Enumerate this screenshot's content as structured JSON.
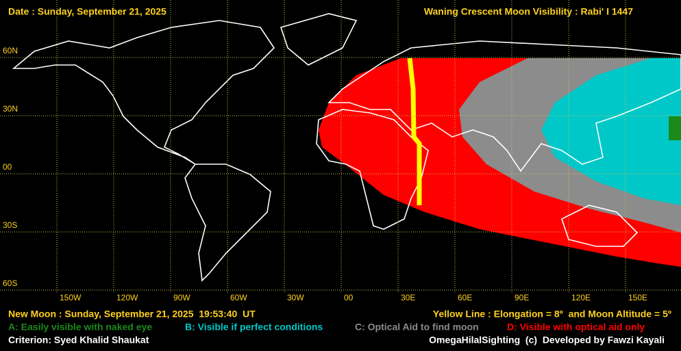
{
  "header": {
    "date": "Date : Sunday, September 21, 2025",
    "title": "Waning Crescent Moon Visibility : Rabi' I 1447"
  },
  "map": {
    "lat_labels": [
      "60N",
      "30N",
      "00",
      "30S",
      "60S"
    ],
    "lon_labels": [
      "150W",
      "120W",
      "90W",
      "60W",
      "30W",
      "00",
      "30E",
      "60E",
      "90E",
      "120E",
      "150E"
    ]
  },
  "footer": {
    "new_moon": "New Moon : Sunday, September 21, 2025  19:53:40  UT",
    "yellow_line": "Yellow Line : Elongation = 8º  and Moon Altitude = 5º",
    "legend": [
      {
        "text": "A: Easily visible with naked eye",
        "color": "#1a8a1a"
      },
      {
        "text": "B: Visible if perfect conditions",
        "color": "#00c8c8"
      },
      {
        "text": "C: Optical Aid to find moon",
        "color": "#8c8c8c"
      },
      {
        "text": "D: Visible with optical aid only",
        "color": "#ff0000"
      }
    ],
    "criterion": "Criterion: Syed Khalid Shaukat",
    "credit": "OmegaHilalSighting  (c)  Developed by Fawzi Kayali"
  }
}
